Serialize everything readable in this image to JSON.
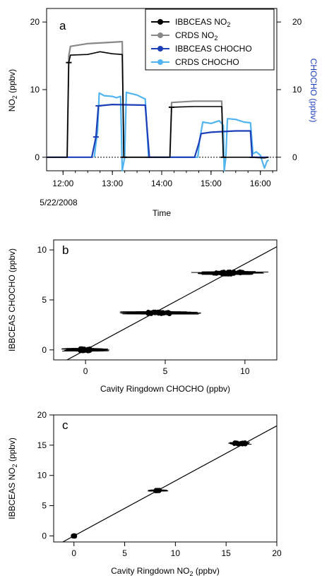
{
  "chart_data": [
    {
      "panel_label": "a",
      "type": "line",
      "xlabel": "Time",
      "x_ticks": [
        "12:00",
        "13:00",
        "14:00",
        "15:00",
        "16:00"
      ],
      "x_tick_sublabel": "5/22/2008",
      "xlim": [
        "11:40",
        "16:20"
      ],
      "ylabel_left": "NO₂ (ppbv)",
      "ylabel_right": "CHOCHO (ppbv)",
      "ylim_left": [
        -2,
        22
      ],
      "ylim_right": [
        -2,
        22
      ],
      "yticks_left": [
        0,
        10,
        20
      ],
      "yticks_right": [
        0,
        10,
        20
      ],
      "zero_line": "dotted",
      "legend_position": "top-right",
      "legend": [
        {
          "label": "IBBCEAS NO₂",
          "color": "#000000"
        },
        {
          "label": "CRDS NO₂",
          "color": "#888888"
        },
        {
          "label": "IBBCEAS CHOCHO",
          "color": "#1c3fb8"
        },
        {
          "label": "CRDS CHOCHO",
          "color": "#52b4ee"
        }
      ],
      "series": [
        {
          "name": "IBBCEAS NO₂",
          "color": "#000000",
          "points": [
            [
              "11:40",
              0
            ],
            [
              "12:05",
              0
            ],
            [
              "12:07",
              14
            ],
            [
              "12:09",
              15.1
            ],
            [
              "12:30",
              15.2
            ],
            [
              "12:45",
              15.6
            ],
            [
              "13:00",
              15.3
            ],
            [
              "13:12",
              15.2
            ],
            [
              "13:14",
              0
            ],
            [
              "14:10",
              0
            ],
            [
              "14:12",
              7.4
            ],
            [
              "14:40",
              7.5
            ],
            [
              "15:13",
              7.5
            ],
            [
              "15:15",
              0
            ],
            [
              "15:45",
              0
            ],
            [
              "16:05",
              -0.1
            ],
            [
              "16:10",
              0
            ]
          ]
        },
        {
          "name": "CRDS NO₂",
          "color": "#888888",
          "points": [
            [
              "12:05",
              0
            ],
            [
              "12:07",
              15
            ],
            [
              "12:09",
              16.4
            ],
            [
              "12:30",
              16.8
            ],
            [
              "13:00",
              17
            ],
            [
              "13:12",
              17.1
            ],
            [
              "13:14",
              0
            ],
            [
              "14:10",
              0
            ],
            [
              "14:12",
              8.1
            ],
            [
              "14:40",
              8.3
            ],
            [
              "15:13",
              8.3
            ],
            [
              "15:15",
              0
            ]
          ]
        },
        {
          "name": "IBBCEAS CHOCHO",
          "color": "#1c3fb8",
          "points": [
            [
              "11:40",
              0
            ],
            [
              "12:35",
              0
            ],
            [
              "12:40",
              3
            ],
            [
              "12:43",
              7.6
            ],
            [
              "13:00",
              7.8
            ],
            [
              "13:40",
              7.7
            ],
            [
              "13:45",
              0
            ],
            [
              "14:40",
              0
            ],
            [
              "14:45",
              2
            ],
            [
              "14:48",
              3.5
            ],
            [
              "15:00",
              3.7
            ],
            [
              "15:30",
              3.9
            ],
            [
              "15:48",
              3.9
            ],
            [
              "15:50",
              0
            ],
            [
              "16:10",
              0
            ]
          ]
        },
        {
          "name": "CRDS CHOCHO",
          "color": "#52b4ee",
          "points": [
            [
              "12:38",
              0
            ],
            [
              "12:42",
              4
            ],
            [
              "12:44",
              9.5
            ],
            [
              "12:50",
              9.1
            ],
            [
              "13:00",
              9
            ],
            [
              "13:05",
              8.8
            ],
            [
              "13:10",
              9
            ],
            [
              "13:12",
              -2
            ],
            [
              "13:15",
              0
            ],
            [
              "13:17",
              9.6
            ],
            [
              "13:20",
              9.5
            ],
            [
              "13:30",
              9.2
            ],
            [
              "13:40",
              8.6
            ],
            [
              "13:44",
              0
            ],
            [
              "14:44",
              0
            ],
            [
              "14:46",
              2.5
            ],
            [
              "14:50",
              5.2
            ],
            [
              "15:00",
              5
            ],
            [
              "15:10",
              5.4
            ],
            [
              "15:15",
              4.7
            ],
            [
              "15:16",
              -2
            ],
            [
              "15:18",
              0
            ],
            [
              "15:20",
              5.7
            ],
            [
              "15:30",
              5.6
            ],
            [
              "15:40",
              5.2
            ],
            [
              "15:48",
              5.1
            ],
            [
              "15:51",
              0.5
            ],
            [
              "15:55",
              0.8
            ],
            [
              "16:00",
              0.3
            ],
            [
              "16:05",
              -1.6
            ],
            [
              "16:08",
              -0.6
            ],
            [
              "16:10",
              -0.4
            ]
          ]
        }
      ]
    },
    {
      "panel_label": "b",
      "type": "scatter",
      "xlabel": "Cavity Ringdown CHOCHO (ppbv)",
      "ylabel": "IBBCEAS CHOCHO (ppbv)",
      "xlim": [
        -2,
        12
      ],
      "ylim": [
        -1,
        11
      ],
      "xticks": [
        0,
        5,
        10
      ],
      "yticks": [
        0,
        5,
        10
      ],
      "fit_line": {
        "slope": 0.86,
        "intercept": 0
      },
      "clusters": [
        {
          "x": 0,
          "y": 0,
          "x_spread": 0.7,
          "y_spread": 0.3,
          "x_err": 1.2
        },
        {
          "x": 4.6,
          "y": 3.7,
          "x_spread": 1.4,
          "y_spread": 0.25,
          "x_err": 2.0
        },
        {
          "x": 9.0,
          "y": 7.7,
          "x_spread": 1.9,
          "y_spread": 0.3,
          "x_err": 1.5
        }
      ]
    },
    {
      "panel_label": "c",
      "type": "scatter",
      "xlabel": "Cavity Ringdown NO₂ (ppbv)",
      "ylabel": "IBBCEAS NO₂ (ppbv)",
      "xlim": [
        -2,
        20
      ],
      "ylim": [
        -1,
        20
      ],
      "xticks": [
        0,
        5,
        10,
        15,
        20
      ],
      "yticks": [
        0,
        5,
        10,
        15,
        20
      ],
      "fit_line": {
        "slope": 0.91,
        "intercept": 0
      },
      "clusters": [
        {
          "x": 0,
          "y": 0,
          "x_spread": 0.2,
          "y_spread": 0.2,
          "x_err": 0.2
        },
        {
          "x": 8.2,
          "y": 7.5,
          "x_spread": 0.5,
          "y_spread": 0.2,
          "x_err": 0.8
        },
        {
          "x": 16.4,
          "y": 15.3,
          "x_spread": 1.2,
          "y_spread": 0.3,
          "x_err": 0.6
        }
      ]
    }
  ]
}
